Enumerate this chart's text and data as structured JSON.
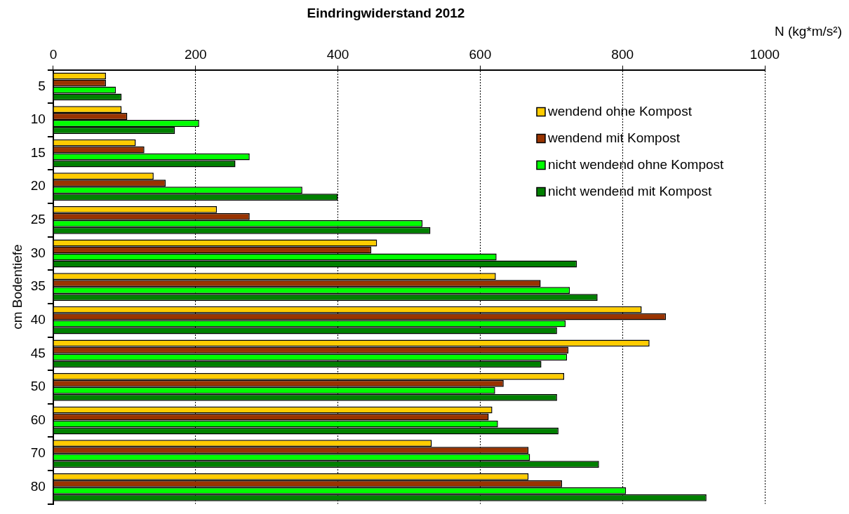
{
  "chart_data": {
    "type": "bar",
    "orientation": "horizontal",
    "title": "Eindringwiderstand 2012",
    "xlabel": "N (kg*m/s²)",
    "ylabel": "cm Bodentiefe",
    "categories": [
      "5",
      "10",
      "15",
      "20",
      "25",
      "30",
      "35",
      "40",
      "45",
      "50",
      "60",
      "70",
      "80"
    ],
    "series": [
      {
        "name": "wendend ohne Kompost",
        "color": "#ffcc00",
        "values": [
          74,
          96,
          116,
          141,
          230,
          455,
          622,
          827,
          838,
          718,
          617,
          532,
          668
        ]
      },
      {
        "name": "wendend mit Kompost",
        "color": "#993300",
        "values": [
          74,
          104,
          128,
          158,
          276,
          447,
          685,
          861,
          724,
          633,
          612,
          668,
          715
        ]
      },
      {
        "name": "nicht wendend ohne Kompost",
        "color": "#00ff00",
        "values": [
          88,
          205,
          276,
          350,
          519,
          623,
          726,
          720,
          722,
          621,
          625,
          670,
          805
        ]
      },
      {
        "name": "nicht wendend mit Kompost",
        "color": "#008000",
        "values": [
          96,
          171,
          256,
          400,
          530,
          736,
          765,
          708,
          686,
          708,
          710,
          767,
          918
        ]
      }
    ],
    "xlim": [
      0,
      1000
    ],
    "xticks": [
      0,
      200,
      400,
      600,
      800,
      1000
    ],
    "grid": "x",
    "legend": "top right"
  }
}
